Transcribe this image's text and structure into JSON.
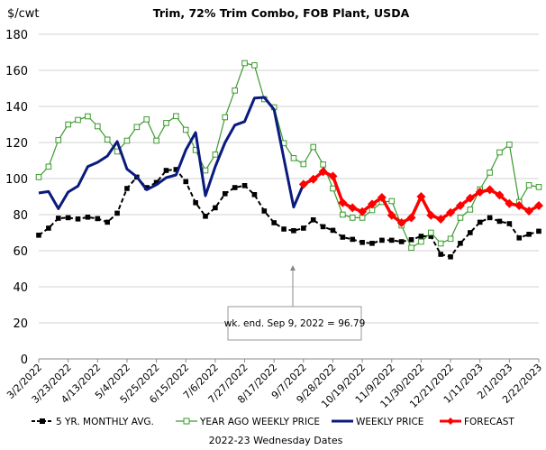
{
  "chart_data": {
    "type": "line",
    "title": "Trim, 72% Trim Combo, FOB Plant, USDA",
    "ylabel": "$/cwt",
    "xlabel": "2022-23 Wednesday Dates",
    "ylim": [
      0,
      180
    ],
    "yticks": [
      0,
      20,
      40,
      60,
      80,
      100,
      120,
      140,
      160,
      180
    ],
    "grid": true,
    "legend_position": "bottom",
    "x": [
      "3/2/2022",
      "3/9/2022",
      "3/16/2022",
      "3/23/2022",
      "3/30/2022",
      "4/6/2022",
      "4/13/2022",
      "4/20/2022",
      "4/27/2022",
      "5/4/2022",
      "5/11/2022",
      "5/18/2022",
      "5/25/2022",
      "6/1/2022",
      "6/8/2022",
      "6/15/2022",
      "6/22/2022",
      "6/29/2022",
      "7/6/2022",
      "7/13/2022",
      "7/20/2022",
      "7/27/2022",
      "8/3/2022",
      "8/10/2022",
      "8/17/2022",
      "8/24/2022",
      "8/31/2022",
      "9/7/2022",
      "9/14/2022",
      "9/21/2022",
      "9/28/2022",
      "10/5/2022",
      "10/12/2022",
      "10/19/2022",
      "10/26/2022",
      "11/2/2022",
      "11/9/2022",
      "11/16/2022",
      "11/23/2022",
      "11/30/2022",
      "12/7/2022",
      "12/14/2022",
      "12/21/2022",
      "12/28/2022",
      "1/4/2023",
      "1/11/2023",
      "1/18/2023",
      "1/25/2023",
      "2/1/2023",
      "2/8/2023",
      "2/15/2023",
      "2/22/2023"
    ],
    "xtick_labels": [
      "3/2/2022",
      "3/23/2022",
      "4/13/2022",
      "5/4/2022",
      "5/25/2022",
      "6/15/2022",
      "7/6/2022",
      "7/27/2022",
      "8/17/2022",
      "9/7/2022",
      "9/28/2022",
      "10/19/2022",
      "11/9/2022",
      "11/30/2022",
      "12/21/2022",
      "1/11/2023",
      "2/1/2023",
      "2/22/2023"
    ],
    "series": [
      {
        "name": "5 YR. MONTHLY AVG.",
        "color": "#000000",
        "style": "dashed-square",
        "values": [
          68.6,
          72.5,
          78,
          78.3,
          77.6,
          78.6,
          77.8,
          75.8,
          80.8,
          94.5,
          100.8,
          95,
          97.8,
          104.5,
          105,
          98.3,
          86.6,
          79.1,
          83.8,
          91.6,
          95,
          96.1,
          91.1,
          82,
          75.5,
          72,
          71.1,
          72.5,
          77.1,
          73.3,
          71.3,
          67.5,
          66.3,
          64.6,
          64.1,
          65.8,
          65.8,
          65,
          66.1,
          68,
          68,
          58,
          56.6,
          64.1,
          70,
          75.8,
          78.3,
          76.3,
          75,
          67.1,
          69.1,
          70.8
        ]
      },
      {
        "name": "YEAR AGO WEEKLY PRICE",
        "color": "#3a9a2c",
        "style": "open-square",
        "values": [
          100.8,
          106.6,
          121.3,
          130,
          132.5,
          134.5,
          129,
          121.6,
          115,
          121,
          128.6,
          132.8,
          121,
          130.8,
          134.6,
          127,
          115.8,
          104.5,
          113.3,
          134,
          148.8,
          164,
          162.8,
          144,
          139.5,
          119.6,
          111.3,
          108,
          117.5,
          107.8,
          94.5,
          80,
          78.3,
          78.3,
          82.5,
          87,
          87.5,
          74,
          61.6,
          65,
          70,
          64,
          66.6,
          78.3,
          82.8,
          94,
          103.3,
          114.5,
          118.8,
          87,
          96.3,
          95.3
        ]
      },
      {
        "name": "WEEKLY PRICE",
        "color": "#0a1a7e",
        "style": "thick",
        "values": [
          92,
          92.8,
          83.3,
          92.5,
          95.8,
          106.6,
          109,
          112.5,
          120.5,
          105.3,
          101,
          93.8,
          96.6,
          100.5,
          102,
          115.8,
          125.5,
          90.5,
          106.6,
          120,
          129.6,
          131.6,
          144.6,
          145,
          138.3,
          111,
          84.2,
          96.79,
          null,
          null,
          null,
          null,
          null,
          null,
          null,
          null,
          null,
          null,
          null,
          null,
          null,
          null,
          null,
          null,
          null,
          null,
          null,
          null,
          null,
          null,
          null,
          null
        ]
      },
      {
        "name": "FORECAST",
        "color": "#ff0000",
        "style": "thick-diamond",
        "values": [
          null,
          null,
          null,
          null,
          null,
          null,
          null,
          null,
          null,
          null,
          null,
          null,
          null,
          null,
          null,
          null,
          null,
          null,
          null,
          null,
          null,
          null,
          null,
          null,
          null,
          null,
          null,
          96.79,
          99.6,
          103.8,
          101.3,
          86.6,
          83.8,
          81.6,
          85.8,
          89.5,
          79.6,
          75.5,
          78.3,
          90,
          79.6,
          77.5,
          81.1,
          85,
          89.1,
          92.5,
          93.8,
          90.8,
          86.1,
          85,
          82,
          85
        ]
      }
    ],
    "annotation": {
      "text": "wk. end. Sep 9, 2022  = 96.79",
      "x": "9/7/2022"
    }
  }
}
